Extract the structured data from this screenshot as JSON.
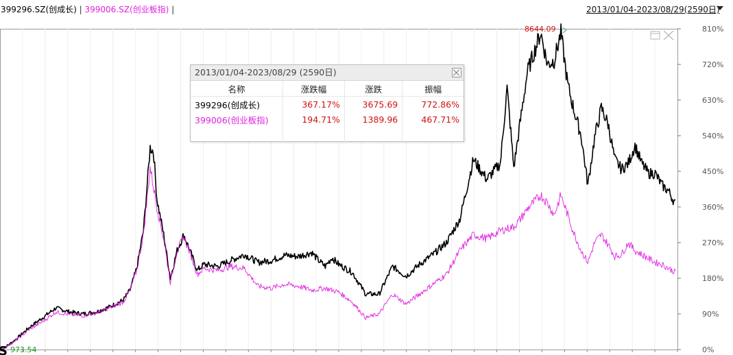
{
  "header": {
    "series1_label": "399296.SZ(创成长)",
    "separator1": " | ",
    "series2_label": "399006.SZ(创业板指)",
    "separator2": " |",
    "range_label": "2013/01/04-2023/08/29(2590日)"
  },
  "popup": {
    "title": "2013/01/04-2023/08/29 (2590日)",
    "columns": [
      "名称",
      "涨跌幅",
      "涨跌",
      "振幅"
    ],
    "rows": [
      {
        "name": "399296(创成长)",
        "pct": "367.17%",
        "chg": "3675.69",
        "amp": "772.86%",
        "color": "#000000"
      },
      {
        "name": "399006(创业板指)",
        "pct": "194.71%",
        "chg": "1389.96",
        "amp": "467.71%",
        "color": "#e020e0"
      }
    ]
  },
  "chart_data": {
    "type": "line",
    "y_unit": "%",
    "ylim": [
      0,
      810
    ],
    "yticks": [
      "810%",
      "720%",
      "630%",
      "540%",
      "450%",
      "360%",
      "270%",
      "180%",
      "90%",
      "0%"
    ],
    "grid": true,
    "annotations": {
      "max_label": "8644.09",
      "min_label": "973.54"
    },
    "series": [
      {
        "name": "399296(创成长)",
        "color": "#000000",
        "points": [
          [
            0,
            0
          ],
          [
            0.02,
            25
          ],
          [
            0.04,
            55
          ],
          [
            0.06,
            80
          ],
          [
            0.08,
            105
          ],
          [
            0.1,
            95
          ],
          [
            0.12,
            90
          ],
          [
            0.14,
            95
          ],
          [
            0.16,
            108
          ],
          [
            0.18,
            125
          ],
          [
            0.19,
            150
          ],
          [
            0.2,
            205
          ],
          [
            0.21,
            300
          ],
          [
            0.22,
            510
          ],
          [
            0.225,
            500
          ],
          [
            0.23,
            380
          ],
          [
            0.24,
            290
          ],
          [
            0.25,
            180
          ],
          [
            0.26,
            250
          ],
          [
            0.27,
            290
          ],
          [
            0.28,
            245
          ],
          [
            0.29,
            200
          ],
          [
            0.3,
            215
          ],
          [
            0.32,
            210
          ],
          [
            0.34,
            225
          ],
          [
            0.36,
            240
          ],
          [
            0.38,
            220
          ],
          [
            0.4,
            225
          ],
          [
            0.42,
            238
          ],
          [
            0.44,
            235
          ],
          [
            0.46,
            245
          ],
          [
            0.47,
            225
          ],
          [
            0.48,
            210
          ],
          [
            0.49,
            232
          ],
          [
            0.5,
            215
          ],
          [
            0.52,
            195
          ],
          [
            0.54,
            140
          ],
          [
            0.56,
            140
          ],
          [
            0.58,
            210
          ],
          [
            0.6,
            185
          ],
          [
            0.62,
            215
          ],
          [
            0.64,
            240
          ],
          [
            0.66,
            270
          ],
          [
            0.68,
            330
          ],
          [
            0.7,
            480
          ],
          [
            0.72,
            430
          ],
          [
            0.74,
            470
          ],
          [
            0.75,
            660
          ],
          [
            0.76,
            460
          ],
          [
            0.77,
            580
          ],
          [
            0.78,
            700
          ],
          [
            0.8,
            800
          ],
          [
            0.81,
            720
          ],
          [
            0.82,
            730
          ],
          [
            0.83,
            800
          ],
          [
            0.84,
            670
          ],
          [
            0.85,
            600
          ],
          [
            0.86,
            540
          ],
          [
            0.87,
            415
          ],
          [
            0.88,
            535
          ],
          [
            0.89,
            610
          ],
          [
            0.9,
            570
          ],
          [
            0.91,
            480
          ],
          [
            0.92,
            455
          ],
          [
            0.93,
            470
          ],
          [
            0.94,
            515
          ],
          [
            0.95,
            470
          ],
          [
            0.96,
            445
          ],
          [
            0.97,
            445
          ],
          [
            0.98,
            415
          ],
          [
            0.99,
            400
          ],
          [
            1.0,
            367
          ]
        ]
      },
      {
        "name": "399006(创业板指)",
        "color": "#e020e0",
        "points": [
          [
            0,
            0
          ],
          [
            0.02,
            22
          ],
          [
            0.04,
            50
          ],
          [
            0.06,
            70
          ],
          [
            0.08,
            95
          ],
          [
            0.1,
            88
          ],
          [
            0.12,
            85
          ],
          [
            0.14,
            92
          ],
          [
            0.16,
            105
          ],
          [
            0.18,
            120
          ],
          [
            0.19,
            150
          ],
          [
            0.2,
            200
          ],
          [
            0.21,
            290
          ],
          [
            0.22,
            460
          ],
          [
            0.23,
            360
          ],
          [
            0.24,
            280
          ],
          [
            0.25,
            170
          ],
          [
            0.26,
            250
          ],
          [
            0.27,
            285
          ],
          [
            0.28,
            240
          ],
          [
            0.29,
            190
          ],
          [
            0.3,
            205
          ],
          [
            0.32,
            200
          ],
          [
            0.34,
            210
          ],
          [
            0.36,
            205
          ],
          [
            0.38,
            160
          ],
          [
            0.4,
            155
          ],
          [
            0.42,
            165
          ],
          [
            0.44,
            160
          ],
          [
            0.46,
            150
          ],
          [
            0.48,
            155
          ],
          [
            0.5,
            145
          ],
          [
            0.52,
            120
          ],
          [
            0.54,
            80
          ],
          [
            0.56,
            90
          ],
          [
            0.58,
            140
          ],
          [
            0.6,
            115
          ],
          [
            0.62,
            140
          ],
          [
            0.64,
            165
          ],
          [
            0.66,
            190
          ],
          [
            0.68,
            250
          ],
          [
            0.7,
            290
          ],
          [
            0.72,
            280
          ],
          [
            0.74,
            300
          ],
          [
            0.76,
            310
          ],
          [
            0.77,
            330
          ],
          [
            0.78,
            355
          ],
          [
            0.8,
            390
          ],
          [
            0.81,
            370
          ],
          [
            0.82,
            340
          ],
          [
            0.83,
            390
          ],
          [
            0.84,
            340
          ],
          [
            0.85,
            290
          ],
          [
            0.86,
            250
          ],
          [
            0.87,
            220
          ],
          [
            0.88,
            270
          ],
          [
            0.89,
            290
          ],
          [
            0.9,
            265
          ],
          [
            0.91,
            235
          ],
          [
            0.92,
            240
          ],
          [
            0.93,
            270
          ],
          [
            0.94,
            250
          ],
          [
            0.95,
            240
          ],
          [
            0.96,
            230
          ],
          [
            0.97,
            220
          ],
          [
            0.98,
            215
          ],
          [
            0.99,
            205
          ],
          [
            1.0,
            195
          ]
        ]
      }
    ]
  }
}
